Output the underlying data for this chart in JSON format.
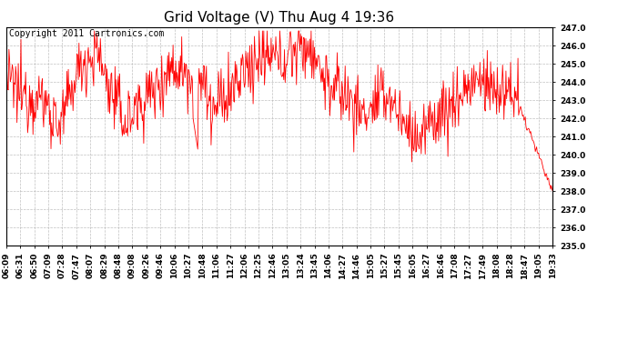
{
  "title": "Grid Voltage (V) Thu Aug 4 19:36",
  "copyright": "Copyright 2011 Cartronics.com",
  "line_color": "#ff0000",
  "bg_color": "#ffffff",
  "plot_bg_color": "#ffffff",
  "grid_color": "#b0b0b0",
  "ylim": [
    235.0,
    247.0
  ],
  "yticks": [
    235.0,
    236.0,
    237.0,
    238.0,
    239.0,
    240.0,
    241.0,
    242.0,
    243.0,
    244.0,
    245.0,
    246.0,
    247.0
  ],
  "xtick_labels": [
    "06:09",
    "06:31",
    "06:50",
    "07:09",
    "07:28",
    "07:47",
    "08:07",
    "08:29",
    "08:48",
    "09:08",
    "09:26",
    "09:46",
    "10:06",
    "10:27",
    "10:48",
    "11:06",
    "11:27",
    "12:06",
    "12:25",
    "12:46",
    "13:05",
    "13:24",
    "13:45",
    "14:06",
    "14:27",
    "14:46",
    "15:05",
    "15:27",
    "15:45",
    "16:05",
    "16:27",
    "16:46",
    "17:08",
    "17:27",
    "17:49",
    "18:08",
    "18:28",
    "18:47",
    "19:05",
    "19:33"
  ],
  "title_fontsize": 11,
  "tick_fontsize": 6.5,
  "copyright_fontsize": 7
}
